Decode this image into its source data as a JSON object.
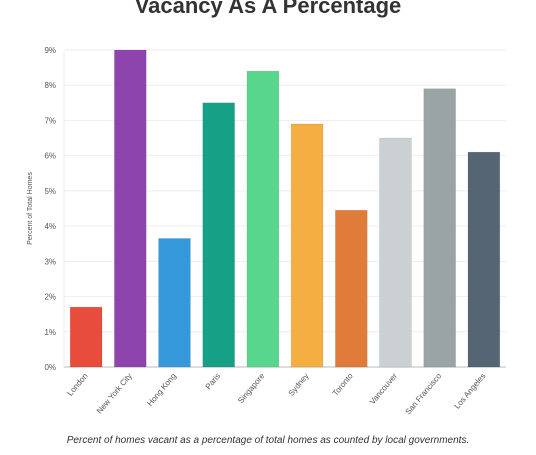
{
  "chart_data": {
    "type": "bar",
    "title": "Vacancy As A Percentage",
    "ylabel": "Percent of Total Homes",
    "xlabel": "",
    "categories": [
      "London",
      "New York City",
      "Hong Kong",
      "Paris",
      "Singapore",
      "Sydney",
      "Toronto",
      "Vancouver",
      "San Francisco",
      "Los Angeles"
    ],
    "values": [
      1.7,
      9.0,
      3.65,
      7.5,
      8.4,
      6.9,
      4.45,
      6.5,
      7.9,
      6.1
    ],
    "colors": [
      "#e74c3c",
      "#8e44ad",
      "#3498db",
      "#16a085",
      "#58d68d",
      "#f4ae42",
      "#e07b39",
      "#cbd0d3",
      "#9aa4a4",
      "#566573"
    ],
    "yticks": [
      "0%",
      "1%",
      "2%",
      "3%",
      "4%",
      "5%",
      "6%",
      "7%",
      "8%",
      "9%"
    ],
    "ylim": [
      0,
      9
    ],
    "grid": true
  },
  "caption": "Percent of homes vacant as a percentage of total homes as counted by local governments."
}
